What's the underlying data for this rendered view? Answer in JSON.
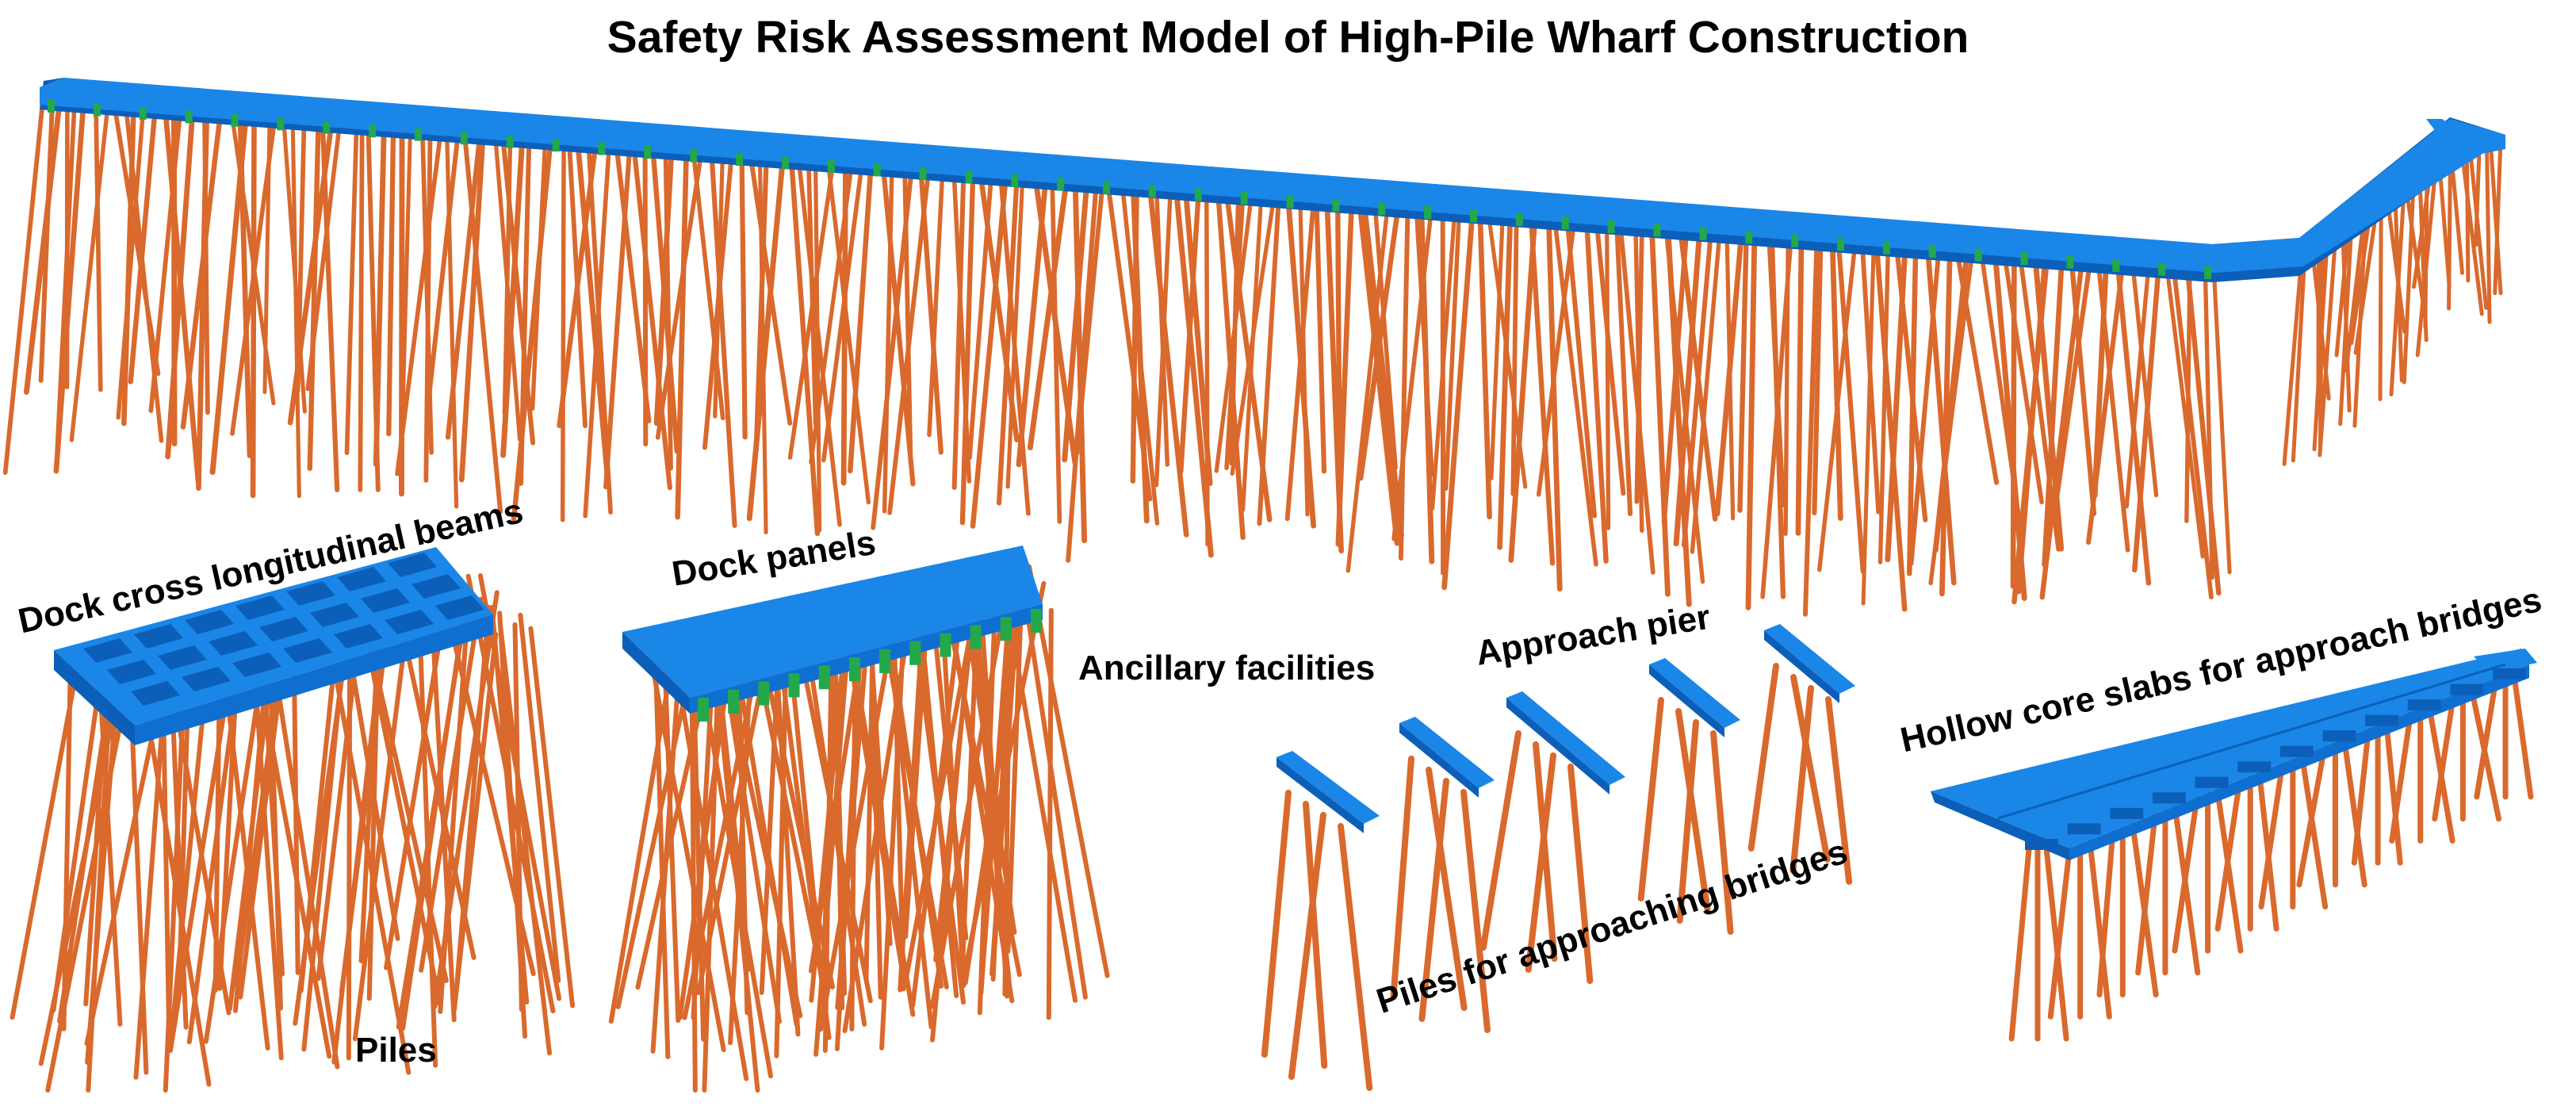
{
  "title": "Safety Risk Assessment Model of High-Pile Wharf Construction",
  "labels": {
    "dock_cross_beams": "Dock cross longitudinal beams",
    "dock_panels": "Dock panels",
    "ancillary": "Ancillary facilities",
    "approach_pier": "Approach pier",
    "hollow_slabs": "Hollow core slabs for approach bridges",
    "piles": "Piles",
    "piles_approach": "Piles for approaching bridges"
  },
  "colors": {
    "deck_blue": "#1a86e8",
    "deck_dark": "#0c5fb8",
    "pile_orange": "#d9692c",
    "pile_dark": "#a94818",
    "ancillary_green": "#23a84a",
    "text": "#000000"
  }
}
